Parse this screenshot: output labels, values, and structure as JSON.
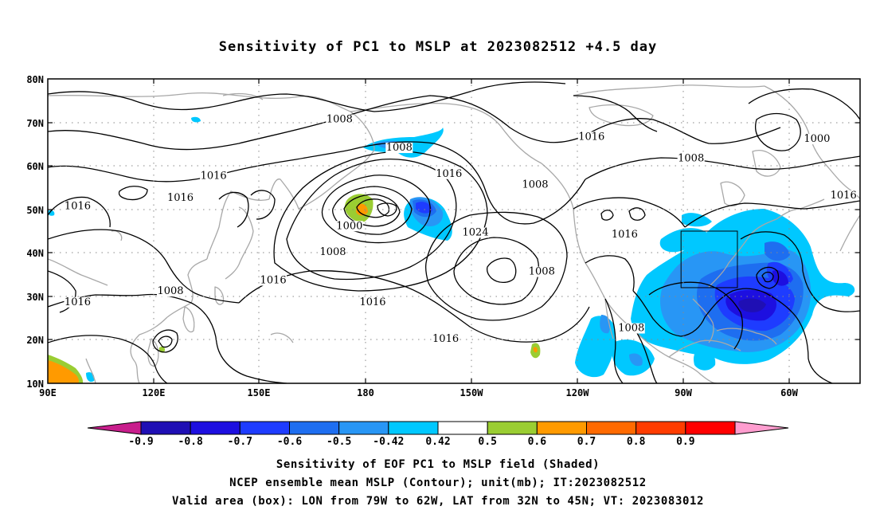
{
  "title": "Sensitivity of PC1 to MSLP at 2023082512 +4.5 day",
  "map": {
    "lat_labels": [
      "80N",
      "70N",
      "60N",
      "50N",
      "40N",
      "30N",
      "20N",
      "10N"
    ],
    "lon_labels": [
      "90E",
      "120E",
      "150E",
      "180",
      "150W",
      "120W",
      "90W",
      "60W"
    ],
    "lon_range": [
      90,
      335
    ],
    "lat_range": [
      10,
      80
    ],
    "contour_unit": "mb",
    "contour_labels": [
      {
        "text": "1008",
        "lon": 178,
        "lat": 70
      },
      {
        "text": "1008",
        "lon": 196,
        "lat": 63.5
      },
      {
        "text": "1016",
        "lon": 254,
        "lat": 66
      },
      {
        "text": "1000",
        "lon": 322,
        "lat": 65.5
      },
      {
        "text": "1008",
        "lon": 284,
        "lat": 61
      },
      {
        "text": "1016",
        "lon": 211,
        "lat": 57.5
      },
      {
        "text": "1016",
        "lon": 140,
        "lat": 57
      },
      {
        "text": "1008",
        "lon": 237,
        "lat": 55
      },
      {
        "text": "1016",
        "lon": 130,
        "lat": 52
      },
      {
        "text": "1016",
        "lon": 330,
        "lat": 52.5
      },
      {
        "text": "1016",
        "lon": 99,
        "lat": 50
      },
      {
        "text": "1000",
        "lon": 181,
        "lat": 45.5
      },
      {
        "text": "1016",
        "lon": 264,
        "lat": 43.5
      },
      {
        "text": "1024",
        "lon": 219,
        "lat": 44
      },
      {
        "text": "1008",
        "lon": 176,
        "lat": 39.5
      },
      {
        "text": "1008",
        "lon": 239,
        "lat": 35
      },
      {
        "text": "1016",
        "lon": 158,
        "lat": 33
      },
      {
        "text": "1016",
        "lon": 99,
        "lat": 28
      },
      {
        "text": "1008",
        "lon": 127,
        "lat": 30.5
      },
      {
        "text": "1016",
        "lon": 188,
        "lat": 28
      },
      {
        "text": "1008",
        "lon": 266,
        "lat": 22
      },
      {
        "text": "1016",
        "lon": 210,
        "lat": 19.5
      }
    ],
    "valid_box": {
      "lon_min": 281,
      "lon_max": 298,
      "lat_min": 32,
      "lat_max": 45
    }
  },
  "colorbar": {
    "levels": [
      "-0.9",
      "-0.8",
      "-0.7",
      "-0.6",
      "-0.5",
      "-0.42",
      "0.42",
      "0.5",
      "0.6",
      "0.7",
      "0.8",
      "0.9"
    ],
    "colors": [
      "#c81e8c",
      "#1f0fb4",
      "#1d0fe0",
      "#1e3cff",
      "#1e6ef0",
      "#2896f5",
      "#00c8ff",
      "#ffffff",
      "#9acd32",
      "#ff9a00",
      "#ff6a00",
      "#ff3c00",
      "#ff0000",
      "#ff9dcf"
    ]
  },
  "captions": {
    "line1": "Sensitivity of EOF PC1 to MSLP field (Shaded)",
    "line2": "NCEP ensemble mean MSLP (Contour); unit(mb); IT:2023082512",
    "line3": "Valid area (box): LON from 79W to 62W, LAT from 32N to 45N; VT: 2023083012"
  }
}
